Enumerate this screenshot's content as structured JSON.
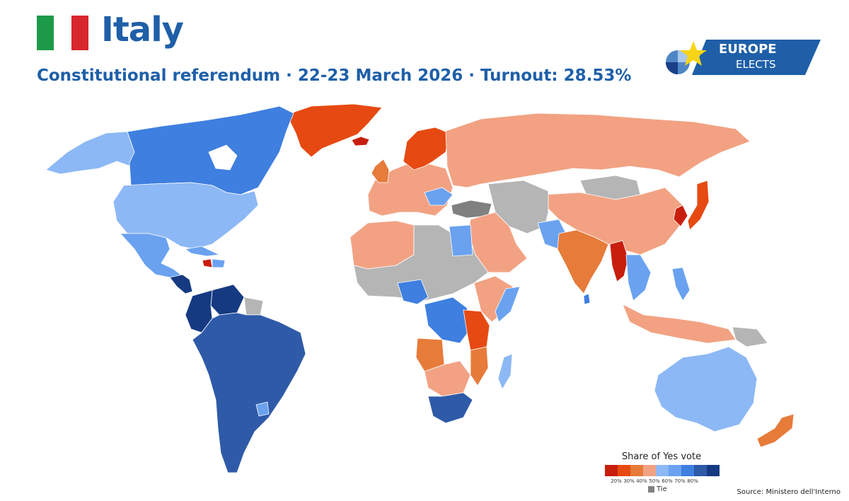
{
  "header": {
    "title": "Italy",
    "subtitle": "Constitutional referendum · 22-23 March 2026 · Turnout: 28.53%"
  },
  "flag": {
    "colors": [
      "#1d9a48",
      "#ffffff",
      "#d7262c"
    ]
  },
  "logo": {
    "line1": "EUROPE",
    "line2": "ELECTS",
    "bg": "#1f5fa8",
    "star": "#f7d417"
  },
  "legend": {
    "title": "Share of Yes vote",
    "swatches": [
      "#c81e0e",
      "#e64a12",
      "#e67b3a",
      "#f2a283",
      "#8cb8f5",
      "#6aa2f0",
      "#3f7fe0",
      "#2e5aa8",
      "#163a82"
    ],
    "ticks": [
      "20%",
      "30%",
      "40%",
      "50%",
      "60%",
      "70%",
      "80%"
    ],
    "tie_label": "Tie",
    "tie_color": "#808080"
  },
  "colors": {
    "red": "#c81e0e",
    "darkorange": "#e64a12",
    "orange": "#e67b3a",
    "salmon": "#f2a283",
    "paleblue": "#8cb8f5",
    "lightblue": "#6aa2f0",
    "blue": "#3f7fe0",
    "dark": "#2e5aa8",
    "navy": "#163a82",
    "grey": "#b5b5b5",
    "tie": "#808080"
  },
  "source": "Source: Ministero dell'Interno"
}
